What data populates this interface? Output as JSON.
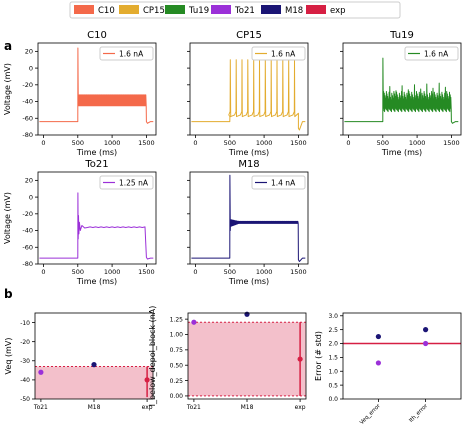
{
  "colors": {
    "C10": "#f4694a",
    "CP15": "#e3ac2f",
    "Tu19": "#258a23",
    "To21": "#9b30d8",
    "M18": "#1b1575",
    "exp": "#d61f43",
    "band_fill": "#f3c0cb"
  },
  "legend": [
    "C10",
    "CP15",
    "Tu19",
    "To21",
    "M18",
    "exp"
  ],
  "panel_labels": {
    "a": "a",
    "b": "b"
  },
  "chart_data": [
    {
      "type": "line",
      "title": "C10",
      "model": "C10",
      "legend": "1.6 nA",
      "xlabel": "Time (ms)",
      "ylabel": "Voltage (mV)",
      "xlim": [
        -80,
        1640
      ],
      "ylim": [
        -80,
        30
      ],
      "xticks": [
        0,
        500,
        1000,
        1500
      ],
      "yticks": [
        -80,
        -60,
        -40,
        -20,
        0,
        20
      ],
      "rest": -64,
      "stim": [
        500,
        1500
      ],
      "pattern": "block",
      "block": [
        -45,
        -32
      ],
      "spike_peak": 24,
      "post": -64
    },
    {
      "type": "line",
      "title": "CP15",
      "model": "CP15",
      "legend": "1.6 nA",
      "xlabel": "Time (ms)",
      "ylabel": "",
      "xlim": [
        -80,
        1640
      ],
      "ylim": [
        -80,
        30
      ],
      "xticks": [
        0,
        500,
        1000,
        1500
      ],
      "yticks": [
        -80,
        -60,
        -40,
        -20,
        0,
        20
      ],
      "rest": -64,
      "stim": [
        500,
        1500
      ],
      "pattern": "spikes",
      "spike_times": [
        505,
        590,
        675,
        760,
        845,
        930,
        1015,
        1100,
        1185,
        1270,
        1355,
        1440
      ],
      "spike_peak": 10,
      "trough": -58,
      "post": -72
    },
    {
      "type": "line",
      "title": "Tu19",
      "model": "Tu19",
      "legend": "1.6 nA",
      "xlabel": "Time (ms)",
      "ylabel": "",
      "xlim": [
        -80,
        1640
      ],
      "ylim": [
        -80,
        30
      ],
      "xticks": [
        0,
        500,
        1000,
        1500
      ],
      "yticks": [
        -80,
        -60,
        -40,
        -20,
        0,
        20
      ],
      "rest": -64,
      "stim": [
        500,
        1500
      ],
      "pattern": "noisy",
      "block": [
        -48,
        -35
      ],
      "spike_peak": 12,
      "post": -64
    },
    {
      "type": "line",
      "title": "To21",
      "model": "To21",
      "legend": "1.25 nA",
      "xlabel": "Time (ms)",
      "ylabel": "Voltage (mV)",
      "xlim": [
        -80,
        1640
      ],
      "ylim": [
        -80,
        30
      ],
      "xticks": [
        0,
        500,
        1000,
        1500
      ],
      "yticks": [
        -80,
        -60,
        -40,
        -20,
        0,
        20
      ],
      "rest": -73,
      "stim": [
        500,
        1500
      ],
      "pattern": "settle",
      "level": -36,
      "spike_peak": 5,
      "post": -72
    },
    {
      "type": "line",
      "title": "M18",
      "model": "M18",
      "legend": "1.4 nA",
      "xlabel": "Time (ms)",
      "ylabel": "",
      "xlim": [
        -80,
        1640
      ],
      "ylim": [
        -80,
        30
      ],
      "xticks": [
        0,
        500,
        1000,
        1500
      ],
      "yticks": [
        -80,
        -60,
        -40,
        -20,
        0,
        20
      ],
      "rest": -73,
      "stim": [
        500,
        1500
      ],
      "pattern": "damped",
      "block": [
        -35,
        -28
      ],
      "spike_peak": 26,
      "post": -75
    },
    {
      "type": "scatter",
      "xlabel": "",
      "ylabel": "Veq (mV)",
      "categories": [
        "To21",
        "M18",
        "exp"
      ],
      "ylim": [
        -50,
        -5
      ],
      "yticks": [
        -50,
        -40,
        -30,
        -20,
        -10
      ],
      "band": [
        -50,
        -33
      ],
      "line": -33,
      "points": [
        {
          "category": "To21",
          "value": -36,
          "model": "To21"
        },
        {
          "category": "M18",
          "value": -32,
          "model": "M18"
        }
      ],
      "exp": {
        "mean": -40,
        "err_low": -49,
        "err_high": -33
      }
    },
    {
      "type": "scatter",
      "xlabel": "",
      "ylabel": "I_below_depol_block (nA)",
      "categories": [
        "To21",
        "M18",
        "exp"
      ],
      "ylim": [
        -0.05,
        1.35
      ],
      "yticks": [
        0.0,
        0.25,
        0.5,
        0.75,
        1.0,
        1.25
      ],
      "band": [
        0.0,
        1.2
      ],
      "points": [
        {
          "category": "To21",
          "value": 1.2,
          "model": "To21"
        },
        {
          "category": "M18",
          "value": 1.33,
          "model": "M18"
        }
      ],
      "exp": {
        "mean": 0.6,
        "err_low": 0.0,
        "err_high": 1.2
      }
    },
    {
      "type": "scatter",
      "xlabel": "",
      "ylabel": "Error (# std)",
      "categories": [
        "Veq_error",
        "Ith_error"
      ],
      "ylim": [
        0.0,
        3.1
      ],
      "yticks": [
        0.0,
        0.5,
        1.0,
        1.5,
        2.0,
        2.5,
        3.0
      ],
      "line": 2.0,
      "points": [
        {
          "category": "Veq_error",
          "value": 2.25,
          "model": "M18"
        },
        {
          "category": "Veq_error",
          "value": 1.3,
          "model": "To21"
        },
        {
          "category": "Ith_error",
          "value": 2.5,
          "model": "M18"
        },
        {
          "category": "Ith_error",
          "value": 2.0,
          "model": "To21"
        }
      ]
    }
  ]
}
